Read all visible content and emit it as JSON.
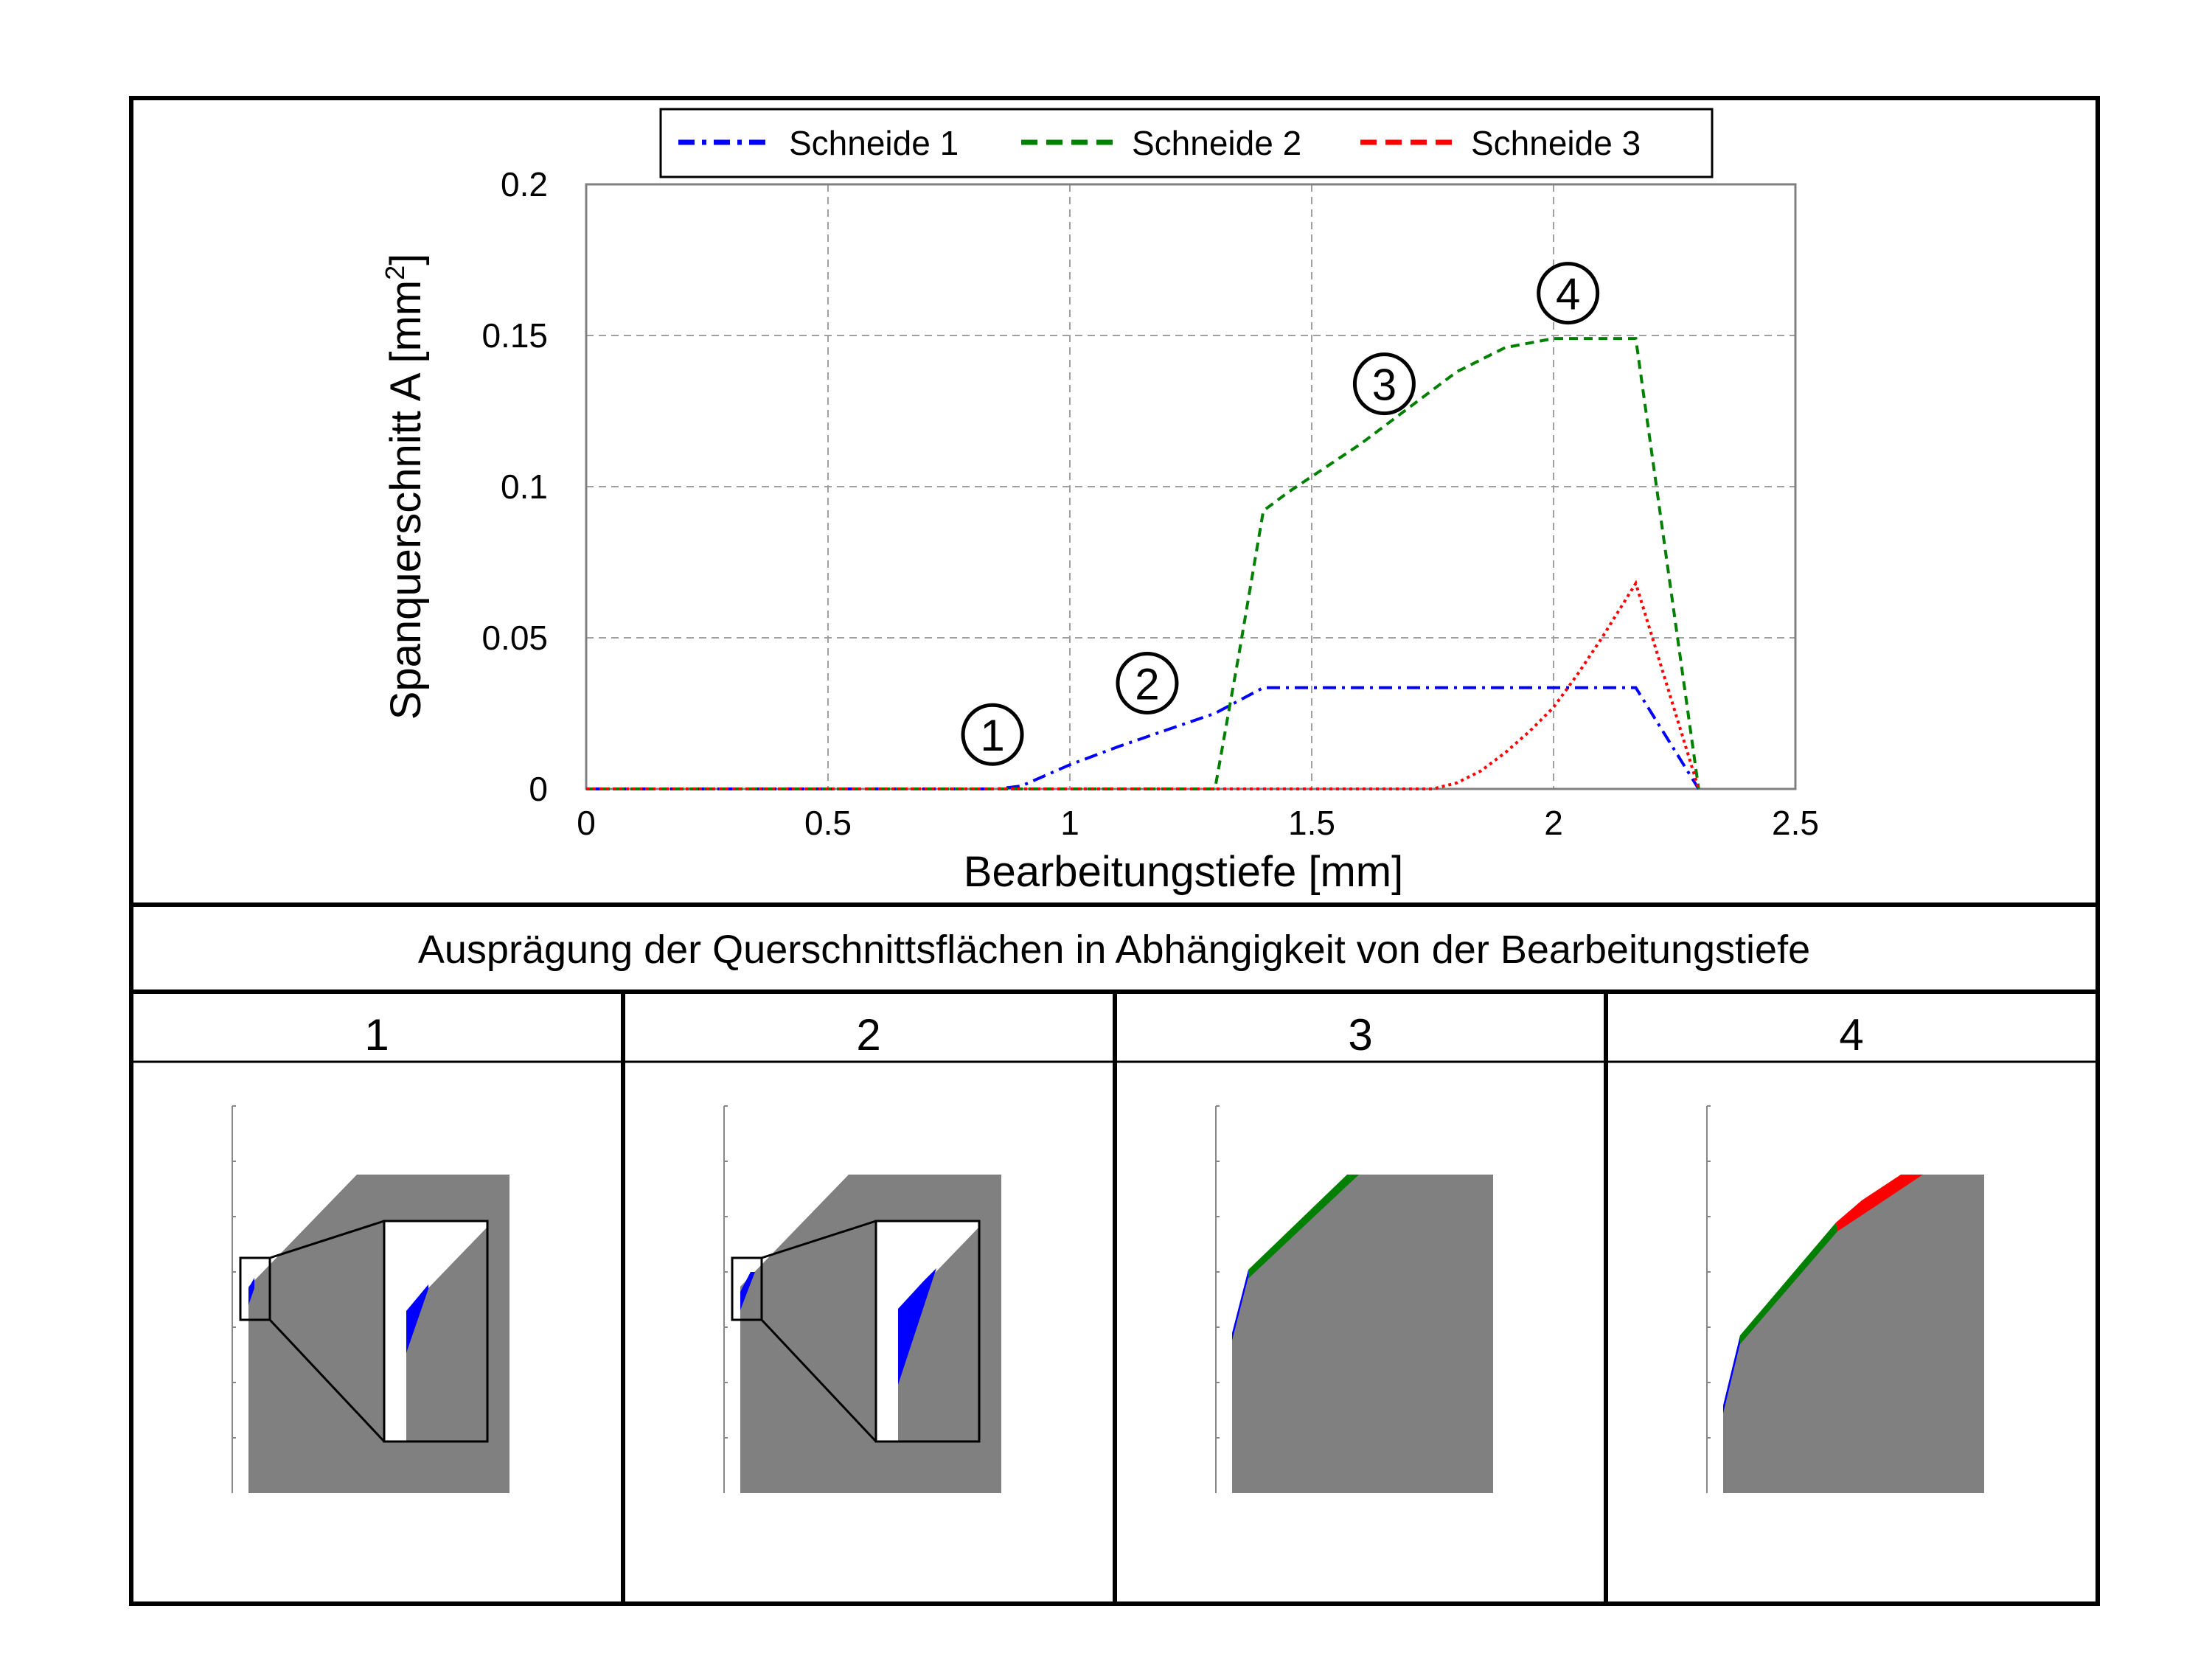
{
  "chart_data": {
    "type": "line",
    "xlabel": "Bearbeitungstiefe [mm]",
    "ylabel": "Spanquerschnitt A [mm",
    "ylabel_sup": "2",
    "ylabel_end": "]",
    "xlim": [
      0,
      2.5
    ],
    "ylim": [
      0,
      0.2
    ],
    "xticks": [
      0,
      0.5,
      1,
      1.5,
      2,
      2.5
    ],
    "xtick_labels": [
      "0",
      "0.5",
      "1",
      "1.5",
      "2",
      "2.5"
    ],
    "yticks": [
      0,
      0.05,
      0.1,
      0.15,
      0.2
    ],
    "ytick_labels": [
      "0",
      "0.05",
      "0.1",
      "0.15",
      "0.2"
    ],
    "grid": true,
    "legend_position": "top",
    "series": [
      {
        "name": "Schneide 1",
        "color": "#0000ff",
        "style": "dash-dot",
        "x": [
          0,
          0.85,
          0.9,
          1.0,
          1.1,
          1.2,
          1.3,
          1.4,
          1.5,
          1.8,
          2.0,
          2.17,
          2.3
        ],
        "y": [
          0,
          0,
          0.001,
          0.008,
          0.014,
          0.0195,
          0.025,
          0.0335,
          0.0335,
          0.0335,
          0.0335,
          0.0335,
          0
        ]
      },
      {
        "name": "Schneide 2",
        "color": "#008000",
        "style": "dashed",
        "x": [
          0,
          1.3,
          1.35,
          1.4,
          1.45,
          1.6,
          1.8,
          1.9,
          2.0,
          2.17,
          2.3
        ],
        "y": [
          0,
          0,
          0.045,
          0.092,
          0.098,
          0.114,
          0.138,
          0.146,
          0.149,
          0.149,
          0
        ]
      },
      {
        "name": "Schneide 3",
        "color": "#ff0000",
        "style": "dotted",
        "x": [
          0,
          1.75,
          1.8,
          1.85,
          1.9,
          1.95,
          2.0,
          2.05,
          2.1,
          2.17,
          2.3
        ],
        "y": [
          0,
          0,
          0.002,
          0.006,
          0.012,
          0.019,
          0.027,
          0.038,
          0.05,
          0.068,
          0
        ]
      }
    ],
    "markers": [
      {
        "label": "1",
        "x": 0.84,
        "y": 0.018
      },
      {
        "label": "2",
        "x": 1.16,
        "y": 0.035
      },
      {
        "label": "3",
        "x": 1.65,
        "y": 0.134
      },
      {
        "label": "4",
        "x": 2.03,
        "y": 0.164
      }
    ]
  },
  "caption": "Ausprägung der Querschnittsflächen in Abhängigkeit von der Bearbeitungstiefe",
  "panels": [
    {
      "label": "1",
      "stage": 1
    },
    {
      "label": "2",
      "stage": 2
    },
    {
      "label": "3",
      "stage": 3
    },
    {
      "label": "4",
      "stage": 4
    }
  ],
  "colors": {
    "workpiece": "#808080",
    "schneide1": "#0000ff",
    "schneide2": "#008000",
    "schneide3": "#ff0000"
  }
}
